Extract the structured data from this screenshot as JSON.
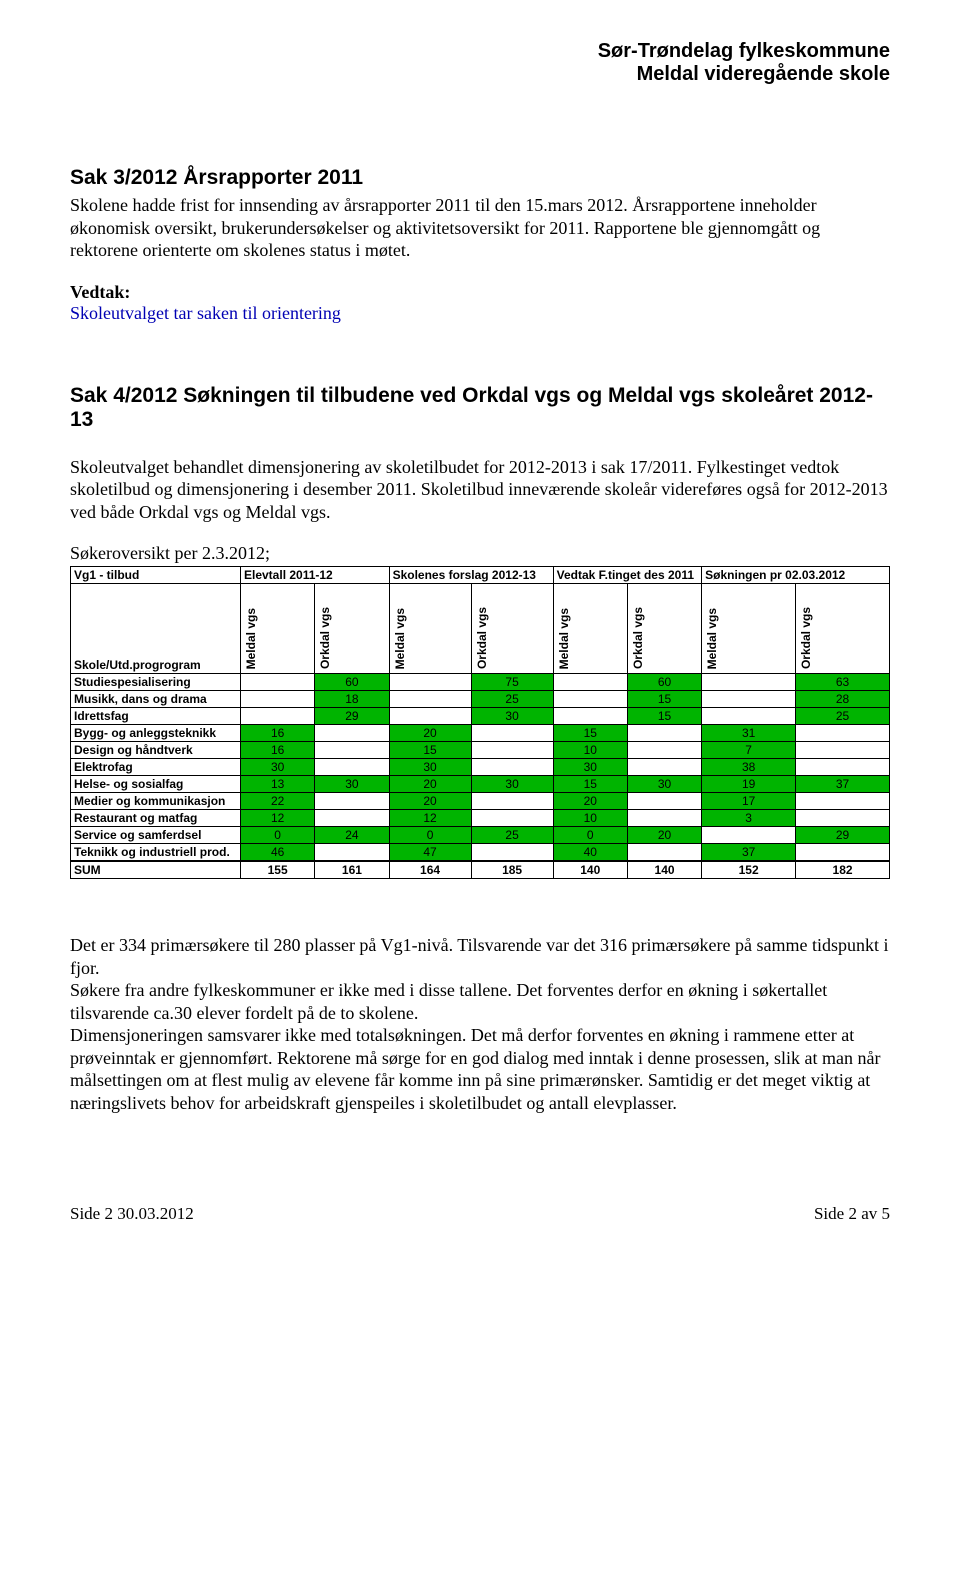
{
  "header": {
    "line1": "Sør-Trøndelag fylkeskommune",
    "line2": "Meldal videregående skole"
  },
  "sak3": {
    "heading": "Sak 3/2012  Årsrapporter 2011",
    "body": "Skolene hadde frist for innsending av årsrapporter 2011 til den 15.mars 2012. Årsrapportene inneholder økonomisk oversikt, brukerundersøkelser og aktivitetsoversikt for 2011. Rapportene ble gjennomgått og rektorene orienterte om skolenes status i møtet.",
    "vedtak_label": "Vedtak:",
    "vedtak_text": "Skoleutvalget tar saken til orientering"
  },
  "sak4": {
    "heading": "Sak 4/2012  Søkningen til tilbudene ved Orkdal vgs og Meldal vgs skoleåret 2012-13",
    "body": "Skoleutvalget behandlet dimensjonering av skoletilbudet for 2012-2013 i sak 17/2011. Fylkestinget vedtok skoletilbud og dimensjonering i desember 2011. Skoletilbud inneværende skoleår videreføres også for 2012-2013 ved både Orkdal vgs og Meldal vgs.",
    "sokeroversikt": "Søkeroversikt per 2.3.2012;"
  },
  "table": {
    "colors": {
      "green": "#00b400",
      "border": "#000000",
      "bg": "#ffffff"
    },
    "top_left": "Vg1 - tilbud",
    "group_headers": [
      "Elevtall 2011-12",
      "Skolenes forslag 2012-13",
      "Vedtak F.tinget des 2011",
      "Søkningen pr 02.03.2012"
    ],
    "sub_headers": [
      "Meldal vgs",
      "Orkdal vgs"
    ],
    "row_label_header": "Skole/Utd.progrogram",
    "rows": [
      {
        "name": "Studiespesialisering",
        "cells": [
          "",
          "60",
          "",
          "75",
          "",
          "60",
          "",
          "63"
        ],
        "green": [
          0,
          1,
          0,
          1,
          0,
          1,
          0,
          1
        ]
      },
      {
        "name": "Musikk, dans og drama",
        "cells": [
          "",
          "18",
          "",
          "25",
          "",
          "15",
          "",
          "28"
        ],
        "green": [
          0,
          1,
          0,
          1,
          0,
          1,
          0,
          1
        ]
      },
      {
        "name": "Idrettsfag",
        "cells": [
          "",
          "29",
          "",
          "30",
          "",
          "15",
          "",
          "25"
        ],
        "green": [
          0,
          1,
          0,
          1,
          0,
          1,
          0,
          1
        ]
      },
      {
        "name": "Bygg- og anleggsteknikk",
        "cells": [
          "16",
          "",
          "20",
          "",
          "15",
          "",
          "31",
          ""
        ],
        "green": [
          1,
          0,
          1,
          0,
          1,
          0,
          1,
          0
        ]
      },
      {
        "name": "Design og håndtverk",
        "cells": [
          "16",
          "",
          "15",
          "",
          "10",
          "",
          "7",
          ""
        ],
        "green": [
          1,
          0,
          1,
          0,
          1,
          0,
          1,
          0
        ]
      },
      {
        "name": "Elektrofag",
        "cells": [
          "30",
          "",
          "30",
          "",
          "30",
          "",
          "38",
          ""
        ],
        "green": [
          1,
          0,
          1,
          0,
          1,
          0,
          1,
          0
        ]
      },
      {
        "name": "Helse- og sosialfag",
        "cells": [
          "13",
          "30",
          "20",
          "30",
          "15",
          "30",
          "19",
          "37"
        ],
        "green": [
          1,
          1,
          1,
          1,
          1,
          1,
          1,
          1
        ]
      },
      {
        "name": "Medier og kommunikasjon",
        "cells": [
          "22",
          "",
          "20",
          "",
          "20",
          "",
          "17",
          ""
        ],
        "green": [
          1,
          0,
          1,
          0,
          1,
          0,
          1,
          0
        ]
      },
      {
        "name": "Restaurant og matfag",
        "cells": [
          "12",
          "",
          "12",
          "",
          "10",
          "",
          "3",
          ""
        ],
        "green": [
          1,
          0,
          1,
          0,
          1,
          0,
          1,
          0
        ]
      },
      {
        "name": "Service og samferdsel",
        "cells": [
          "0",
          "24",
          "0",
          "25",
          "0",
          "20",
          "",
          "29"
        ],
        "green": [
          1,
          1,
          1,
          1,
          1,
          1,
          0,
          1
        ]
      },
      {
        "name": "Teknikk og industriell prod.",
        "cells": [
          "46",
          "",
          "47",
          "",
          "40",
          "",
          "37",
          ""
        ],
        "green": [
          1,
          0,
          1,
          0,
          1,
          0,
          1,
          0
        ]
      }
    ],
    "sum_label": "SUM",
    "sum": [
      "155",
      "161",
      "164",
      "185",
      "140",
      "140",
      "152",
      "182"
    ]
  },
  "after_table": {
    "p1": "Det er 334 primærsøkere til 280 plasser på Vg1-nivå. Tilsvarende var det 316 primærsøkere på samme tidspunkt i fjor.",
    "p2": "Søkere fra andre fylkeskommuner er ikke med i disse tallene. Det forventes derfor en økning i søkertallet tilsvarende ca.30 elever fordelt på de to skolene.",
    "p3": "Dimensjoneringen samsvarer ikke med totalsøkningen. Det må derfor forventes en økning i rammene etter at prøveinntak er gjennomført. Rektorene må sørge for en god dialog med inntak i denne prosessen, slik at man når målsettingen om at flest mulig av elevene får komme inn på sine primærønsker. Samtidig er det meget viktig at næringslivets behov for arbeidskraft gjenspeiles i skoletilbudet og antall elevplasser."
  },
  "footer": {
    "left": "Side 2   30.03.2012",
    "right": "Side 2 av 5"
  }
}
